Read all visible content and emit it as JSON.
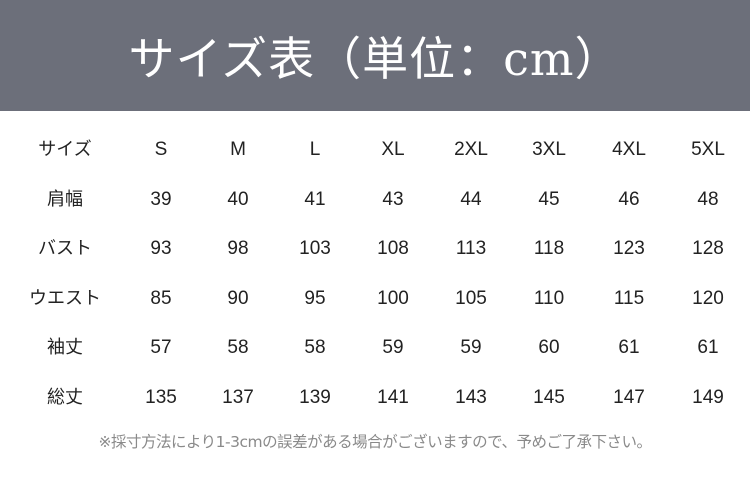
{
  "title": "サイズ表（単位：cm）",
  "colors": {
    "header_bg": "#6c6f7a",
    "title": "#ffffff",
    "text": "#222222",
    "note": "#8a8a8a"
  },
  "table": {
    "header": [
      "サイズ",
      "S",
      "M",
      "L",
      "XL",
      "2XL",
      "3XL",
      "4XL",
      "5XL"
    ],
    "rows": [
      [
        "肩幅",
        "39",
        "40",
        "41",
        "43",
        "44",
        "45",
        "46",
        "48"
      ],
      [
        "バスト",
        "93",
        "98",
        "103",
        "108",
        "113",
        "118",
        "123",
        "128"
      ],
      [
        "ウエスト",
        "85",
        "90",
        "95",
        "100",
        "105",
        "110",
        "115",
        "120"
      ],
      [
        "袖丈",
        "57",
        "58",
        "58",
        "59",
        "59",
        "60",
        "61",
        "61"
      ],
      [
        "総丈",
        "135",
        "137",
        "139",
        "141",
        "143",
        "145",
        "147",
        "149"
      ]
    ]
  },
  "note": "※採寸方法により1-3cmの誤差がある場合がございますので、予めご了承下さい。"
}
